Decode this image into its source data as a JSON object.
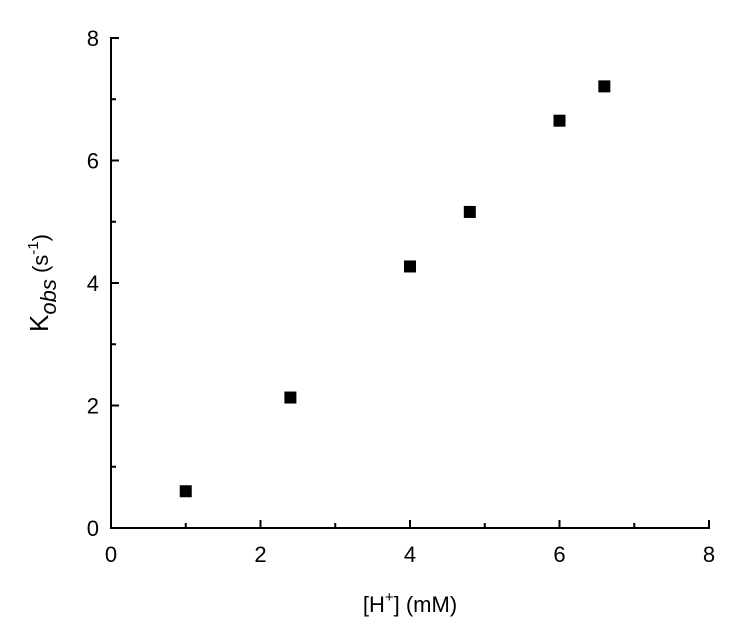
{
  "chart_data": {
    "type": "scatter",
    "x_label": {
      "open": "[H",
      "sup": "+",
      "close": "] (mM)"
    },
    "y_label": {
      "main": "K",
      "sub": "obs",
      "unit": " (s",
      "sup": "-1",
      "close": ")"
    },
    "x": [
      1,
      2.4,
      4,
      4.8,
      6,
      6.6
    ],
    "values": [
      0.6,
      2.13,
      4.27,
      5.16,
      6.65,
      7.21
    ],
    "color": "#000000",
    "xlim": [
      0,
      8
    ],
    "ylim": [
      0,
      8
    ],
    "xticks": [
      0,
      2,
      4,
      6,
      8
    ],
    "yticks": [
      0,
      2,
      4,
      6,
      8
    ],
    "x_minor_ticks": [
      1,
      3,
      5,
      7
    ],
    "y_minor_ticks": [
      1,
      3,
      5,
      7
    ],
    "grid": false
  }
}
